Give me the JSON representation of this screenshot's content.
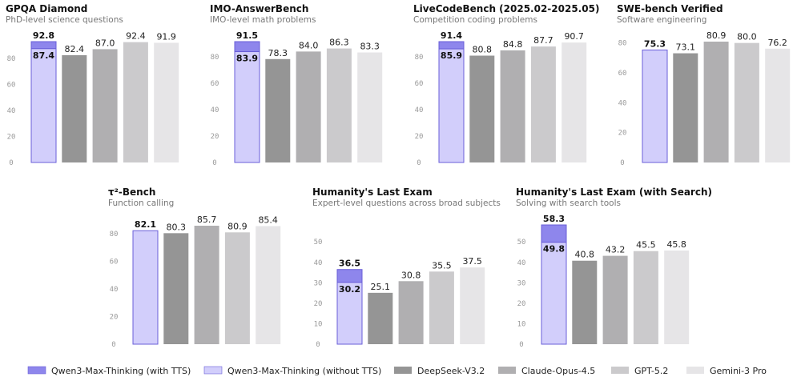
{
  "chart_data": [
    {
      "type": "bar",
      "title": "GPQA Diamond",
      "subtitle": "PhD-level science questions",
      "ylim": [
        0,
        92.8
      ],
      "yticks": [
        0,
        20,
        40,
        60,
        80
      ],
      "values": {
        "with_tts": 92.8,
        "without_tts": 87.4,
        "others": [
          82.4,
          87.0,
          92.4,
          91.9
        ]
      }
    },
    {
      "type": "bar",
      "title": "IMO-AnswerBench",
      "subtitle": "IMO-level math problems",
      "ylim": [
        0,
        91.5
      ],
      "yticks": [
        0,
        20,
        40,
        60,
        80
      ],
      "values": {
        "with_tts": 91.5,
        "without_tts": 83.9,
        "others": [
          78.3,
          84.0,
          86.3,
          83.3
        ]
      }
    },
    {
      "type": "bar",
      "title": "LiveCodeBench (2025.02-2025.05)",
      "subtitle": "Competition coding problems",
      "ylim": [
        0,
        91.4
      ],
      "yticks": [
        0,
        20,
        40,
        60,
        80
      ],
      "values": {
        "with_tts": 91.4,
        "without_tts": 85.9,
        "others": [
          80.8,
          84.8,
          87.7,
          90.7
        ]
      }
    },
    {
      "type": "bar",
      "title": "SWE-bench Verified",
      "subtitle": "Software engineering",
      "ylim": [
        0,
        80.9
      ],
      "yticks": [
        0,
        20,
        40,
        60,
        80
      ],
      "values": {
        "with_tts": null,
        "without_tts": 75.3,
        "others": [
          73.1,
          80.9,
          80.0,
          76.2
        ]
      }
    },
    {
      "type": "bar",
      "title": "τ²-Bench",
      "subtitle": "Function calling",
      "ylim": [
        0,
        85.7
      ],
      "yticks": [
        0,
        20,
        40,
        60,
        80
      ],
      "values": {
        "with_tts": null,
        "without_tts": 82.1,
        "others": [
          80.3,
          85.7,
          80.9,
          85.4
        ]
      }
    },
    {
      "type": "bar",
      "title": "Humanity's Last Exam",
      "subtitle": "Expert-level questions across broad subjects",
      "ylim": [
        0,
        58.3
      ],
      "yticks": [
        0,
        10,
        20,
        30,
        40,
        50
      ],
      "values": {
        "with_tts": 36.5,
        "without_tts": 30.2,
        "others": [
          25.1,
          30.8,
          35.5,
          37.5
        ]
      }
    },
    {
      "type": "bar",
      "title": "Humanity's Last Exam (with Search)",
      "subtitle": "Solving with search tools",
      "ylim": [
        0,
        58.3
      ],
      "yticks": [
        0,
        10,
        20,
        30,
        40,
        50
      ],
      "values": {
        "with_tts": 58.3,
        "without_tts": 49.8,
        "others": [
          40.8,
          43.2,
          45.5,
          45.8
        ]
      }
    }
  ],
  "legend": [
    {
      "label": "Qwen3-Max-Thinking (with TTS)",
      "color": "#8e86ec"
    },
    {
      "label": "Qwen3-Max-Thinking (without TTS)",
      "color": "#d2cefb"
    },
    {
      "label": "DeepSeek-V3.2",
      "color": "#959595"
    },
    {
      "label": "Claude-Opus-4.5",
      "color": "#b0afb1"
    },
    {
      "label": "GPT-5.2",
      "color": "#cbcacc"
    },
    {
      "label": "Gemini-3 Pro",
      "color": "#e6e5e7"
    }
  ],
  "qwen_border_color": "#6a5fd8"
}
